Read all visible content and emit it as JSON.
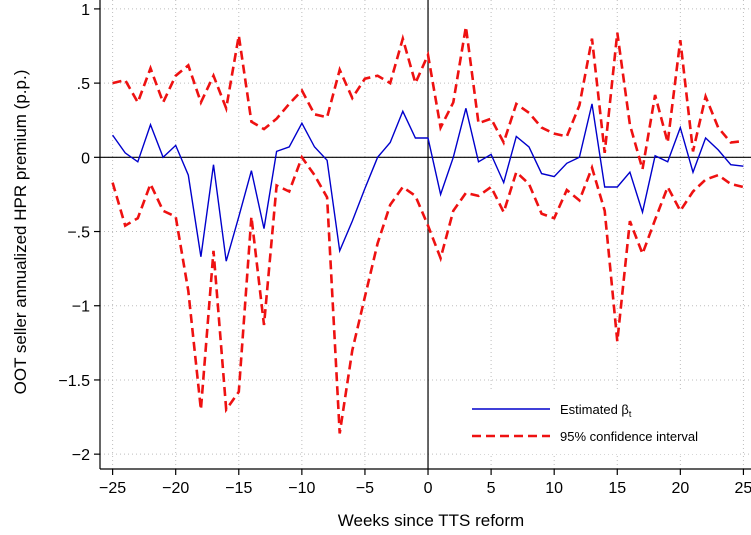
{
  "chart_data": {
    "type": "line",
    "title": "",
    "xlabel": "Weeks since TTS reform",
    "ylabel": "OOT seller annualized HPR premium (p.p.)",
    "xlim": [
      -26,
      25.6
    ],
    "ylim": [
      -2.1,
      1.06
    ],
    "xticks": [
      -25,
      -20,
      -15,
      -10,
      -5,
      0,
      5,
      10,
      15,
      20,
      25
    ],
    "xtick_labels": [
      "−25",
      "−20",
      "−15",
      "−10",
      "−5",
      "0",
      "5",
      "10",
      "15",
      "20",
      "25"
    ],
    "yticks": [
      1,
      0.5,
      0,
      -0.5,
      -1,
      -1.5,
      -2
    ],
    "ytick_labels": [
      "1",
      ".5",
      "0",
      "−.5",
      "−1",
      "−1.5",
      "−2"
    ],
    "grid": true,
    "reference_lines": {
      "x": 0,
      "y": 0
    },
    "legend_position": "bottom-right",
    "x": [
      -25,
      -24,
      -23,
      -22,
      -21,
      -20,
      -19,
      -18,
      -17,
      -16,
      -15,
      -14,
      -13,
      -12,
      -11,
      -10,
      -9,
      -8,
      -7,
      -6,
      -5,
      -4,
      -3,
      -2,
      -1,
      0,
      1,
      2,
      3,
      4,
      5,
      6,
      7,
      8,
      9,
      10,
      11,
      12,
      13,
      14,
      15,
      16,
      17,
      18,
      19,
      20,
      21,
      22,
      23,
      24,
      25
    ],
    "series": [
      {
        "name": "Estimated β",
        "name_sub": "t",
        "style": "solid",
        "color": "#0000cc",
        "values": [
          0.15,
          0.03,
          -0.03,
          0.22,
          0.0,
          0.08,
          -0.12,
          -0.67,
          -0.05,
          -0.7,
          -0.4,
          -0.09,
          -0.48,
          0.04,
          0.07,
          0.23,
          0.07,
          -0.02,
          -0.63,
          -0.43,
          -0.21,
          0.0,
          0.1,
          0.31,
          0.13,
          0.13,
          -0.25,
          0.0,
          0.33,
          -0.03,
          0.02,
          -0.17,
          0.14,
          0.07,
          -0.11,
          -0.13,
          -0.04,
          0.0,
          0.36,
          -0.2,
          -0.2,
          -0.1,
          -0.37,
          0.01,
          -0.03,
          0.2,
          -0.1,
          0.13,
          0.05,
          -0.05,
          -0.06
        ]
      },
      {
        "name": "95% confidence interval",
        "style": "dashed",
        "color": "#ee1111",
        "values": [
          0.5,
          0.52,
          0.37,
          0.6,
          0.37,
          0.55,
          0.62,
          0.37,
          0.55,
          0.33,
          0.82,
          0.24,
          0.19,
          0.26,
          0.36,
          0.45,
          0.29,
          0.27,
          0.59,
          0.4,
          0.53,
          0.55,
          0.5,
          0.8,
          0.5,
          0.69,
          0.2,
          0.37,
          0.88,
          0.23,
          0.26,
          0.1,
          0.36,
          0.3,
          0.2,
          0.16,
          0.14,
          0.35,
          0.8,
          0.03,
          0.84,
          0.22,
          -0.08,
          0.42,
          0.1,
          0.79,
          0.04,
          0.41,
          0.2,
          0.1,
          0.11
        ]
      },
      {
        "name": "",
        "style": "dashed",
        "color": "#ee1111",
        "values": [
          -0.17,
          -0.46,
          -0.41,
          -0.18,
          -0.36,
          -0.4,
          -0.9,
          -1.7,
          -0.63,
          -1.7,
          -1.58,
          -0.4,
          -1.13,
          -0.19,
          -0.23,
          0.0,
          -0.12,
          -0.27,
          -1.86,
          -1.3,
          -0.94,
          -0.58,
          -0.32,
          -0.2,
          -0.26,
          -0.46,
          -0.68,
          -0.36,
          -0.24,
          -0.26,
          -0.2,
          -0.37,
          -0.1,
          -0.18,
          -0.38,
          -0.41,
          -0.22,
          -0.29,
          -0.07,
          -0.36,
          -1.24,
          -0.43,
          -0.65,
          -0.42,
          -0.2,
          -0.36,
          -0.23,
          -0.15,
          -0.12,
          -0.18,
          -0.2
        ]
      }
    ]
  }
}
